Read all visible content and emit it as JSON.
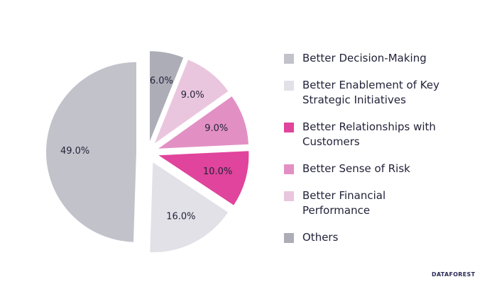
{
  "chart_data": {
    "type": "pie",
    "series": [
      {
        "name": "Better Decision-Making",
        "color": "#c2c2ca",
        "values": [
          49
        ],
        "value_labels": [
          "49.0%"
        ]
      },
      {
        "name": "Better Enablement of Key Strategic Initiatives",
        "color": "#e1e1e7",
        "values": [
          16
        ],
        "value_labels": [
          "16.0%"
        ]
      },
      {
        "name": "Better Relationships with Customers",
        "color": "#e0449c",
        "values": [
          10
        ],
        "value_labels": [
          "10.0%"
        ]
      },
      {
        "name": "Better Sense of Risk",
        "color": "#e290c4",
        "values": [
          9
        ],
        "value_labels": [
          "9.0%"
        ]
      },
      {
        "name": "Better Financial Performance",
        "color": "#eac6de",
        "values": [
          9
        ],
        "value_labels": [
          "9.0%"
        ]
      },
      {
        "name": "Others",
        "color": "#acadb6",
        "values": [
          6
        ],
        "value_labels": [
          "6.0%"
        ]
      }
    ],
    "legend": "right",
    "watermark": "DATAFOREST"
  }
}
